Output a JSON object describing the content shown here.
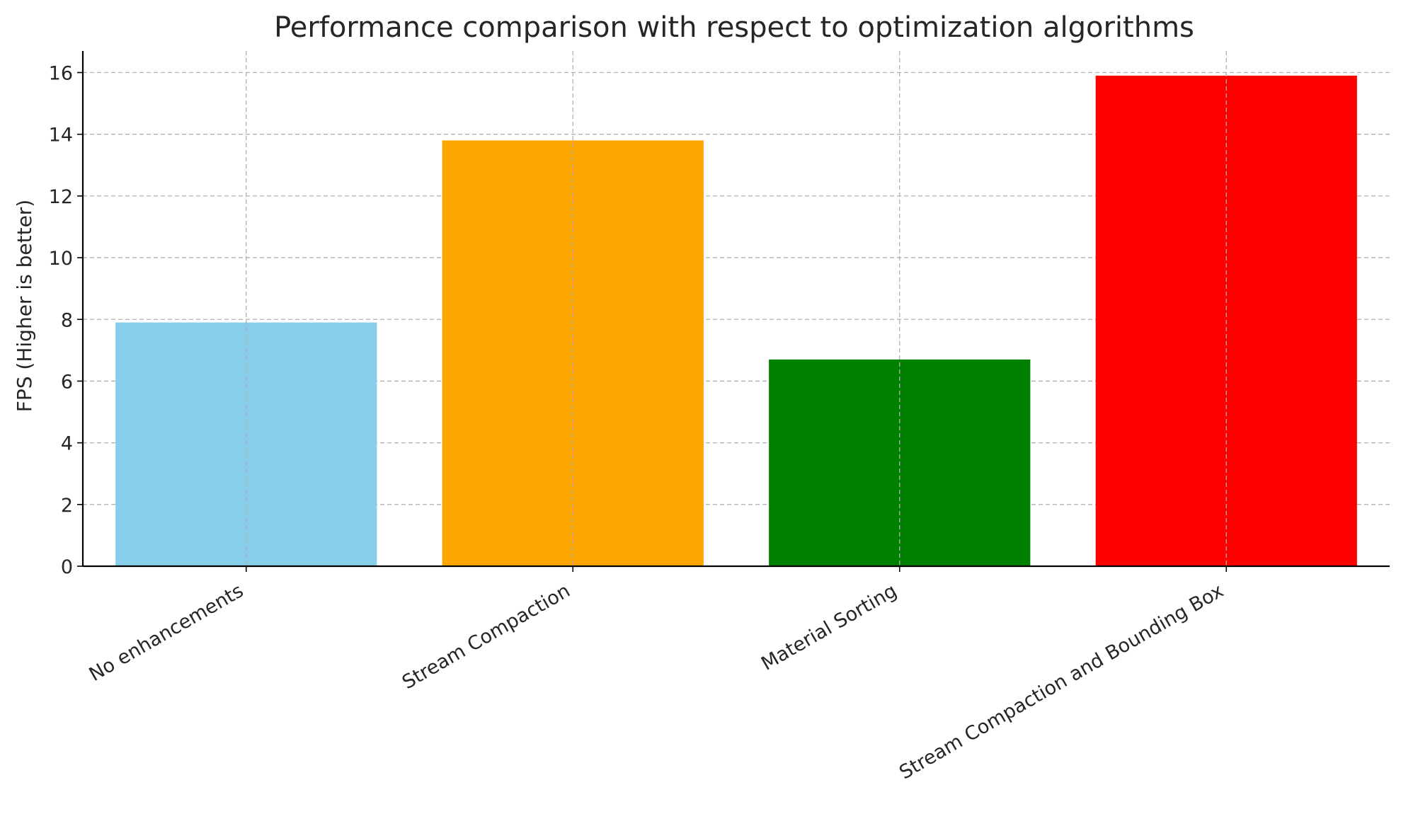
{
  "chart_data": {
    "type": "bar",
    "title": "Performance comparison with respect to optimization algorithms",
    "xlabel": "",
    "ylabel": "FPS (Higher is better)",
    "categories": [
      "No enhancements",
      "Stream Compaction",
      "Material Sorting",
      "Stream Compaction and Bounding Box"
    ],
    "values": [
      7.9,
      13.8,
      6.7,
      15.9
    ],
    "colors": [
      "#87ceeb",
      "#ffa500",
      "#008000",
      "#ff0000"
    ],
    "ylim": [
      0,
      16.7
    ],
    "yticks": [
      0,
      2,
      4,
      6,
      8,
      10,
      12,
      14,
      16
    ],
    "grid": true
  }
}
